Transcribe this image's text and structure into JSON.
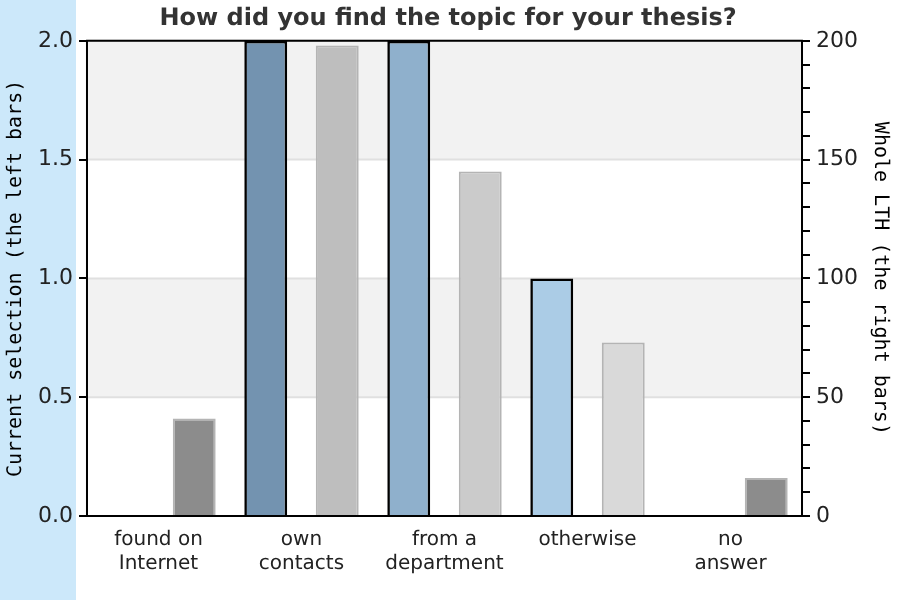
{
  "chart_data": {
    "type": "bar",
    "title": "How did you find the topic for your thesis?",
    "categories": [
      "found on\nInternet",
      "own\ncontacts",
      "from a\ndepartment",
      "otherwise",
      "no\nanswer"
    ],
    "series": [
      {
        "name": null,
        "colors": [
          "#7393b0",
          "#7393b0",
          "#8fb0cc",
          "#abcce6",
          "#abcce6"
        ],
        "values": [
          0,
          2,
          2,
          1,
          0
        ]
      },
      {
        "name": null,
        "axis": "y2",
        "colors": [
          "#8c8c8c",
          "#bebebe",
          "#cbcbcb",
          "#d9d9d9",
          "#8c8c8c"
        ],
        "values": [
          41,
          198,
          145,
          73,
          16
        ]
      }
    ],
    "ylabel": "Current selection (the left bars)",
    "y2label": "Whole LTH (the right bars)",
    "ylim": [
      0,
      2
    ],
    "yticks": [
      {
        "value": 0,
        "label": "0.0"
      },
      {
        "value": 0.5,
        "label": "0.5"
      },
      {
        "value": 1,
        "label": "1.0"
      },
      {
        "value": 1.5,
        "label": "1.5"
      },
      {
        "value": 2,
        "label": "2.0"
      }
    ],
    "y2lim": [
      0,
      200
    ],
    "y2ticks": [
      0,
      {
        "value": 10,
        "label": null
      },
      {
        "value": 20,
        "label": null
      },
      {
        "value": 30,
        "label": null
      },
      {
        "value": 40,
        "label": null
      },
      50,
      {
        "value": 60,
        "label": null
      },
      {
        "value": 70,
        "label": null
      },
      {
        "value": 80,
        "label": null
      },
      {
        "value": 90,
        "label": null
      },
      100,
      {
        "value": 110,
        "label": null
      },
      {
        "value": 120,
        "label": null
      },
      {
        "value": 130,
        "label": null
      },
      {
        "value": 140,
        "label": null
      },
      150,
      {
        "value": 160,
        "label": null
      },
      {
        "value": 170,
        "label": null
      },
      {
        "value": 180,
        "label": null
      },
      {
        "value": 190,
        "label": null
      },
      200
    ],
    "bands": [
      {
        "axis": "y",
        "from": 0.5,
        "to": 1,
        "color": "#f2f2f2"
      },
      {
        "axis": "y",
        "from": 1.5,
        "to": 2,
        "color": "#f2f2f2"
      }
    ],
    "grid": "y",
    "legend": false
  }
}
